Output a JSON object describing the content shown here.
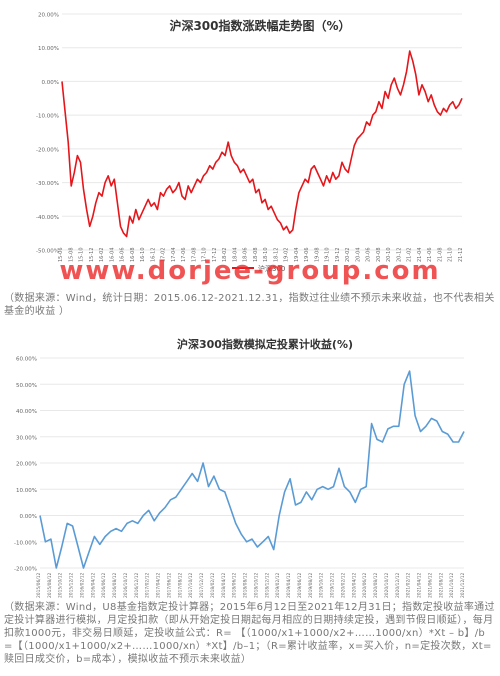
{
  "chart_data": [
    {
      "type": "line",
      "title": "沪深300指数涨跌幅走势图（%）",
      "legend": [
        "沪深300"
      ],
      "legend_position": "bottom",
      "ylim": [
        -50,
        20
      ],
      "yticks": [
        "20.00%",
        "10.00%",
        "0.00%",
        "-10.00%",
        "-20.00%",
        "-30.00%",
        "-40.00%",
        "-50.00%"
      ],
      "ytick_values": [
        20,
        10,
        0,
        -10,
        -20,
        -30,
        -40,
        -50
      ],
      "xticks": [
        "15-06",
        "15-08",
        "15-10",
        "15-12",
        "16-02",
        "16-04",
        "16-06",
        "16-08",
        "16-10",
        "16-12",
        "17-02",
        "17-04",
        "17-06",
        "17-08",
        "17-10",
        "17-12",
        "18-02",
        "18-04",
        "18-06",
        "18-08",
        "18-10",
        "18-12",
        "19-02",
        "19-04",
        "19-06",
        "19-08",
        "19-10",
        "19-12",
        "20-02",
        "20-04",
        "20-06",
        "20-08",
        "20-10",
        "20-12",
        "21-02",
        "21-04",
        "21-06",
        "21-08",
        "21-10",
        "21-12"
      ],
      "color": "#e5161b",
      "grid": "horizontal",
      "series": [
        {
          "name": "沪深300",
          "values": [
            0,
            -9,
            -18,
            -31,
            -27,
            -22,
            -24,
            -32,
            -38,
            -43,
            -40,
            -36,
            -33,
            -34,
            -30,
            -28,
            -31,
            -29,
            -36,
            -43,
            -45,
            -46,
            -40,
            -42,
            -38,
            -41,
            -39,
            -37,
            -35,
            -37,
            -36,
            -38,
            -33,
            -34,
            -32,
            -31,
            -33,
            -32,
            -30,
            -34,
            -35,
            -31,
            -33,
            -31,
            -29,
            -30,
            -28,
            -27,
            -25,
            -26,
            -24,
            -23,
            -21,
            -22,
            -18,
            -22,
            -24,
            -25,
            -27,
            -26,
            -28,
            -30,
            -29,
            -33,
            -32,
            -36,
            -35,
            -38,
            -37,
            -39,
            -41,
            -42,
            -44,
            -43,
            -45,
            -44,
            -38,
            -33,
            -31,
            -29,
            -30,
            -26,
            -25,
            -27,
            -29,
            -31,
            -28,
            -30,
            -27,
            -29,
            -28,
            -24,
            -26,
            -27,
            -23,
            -19,
            -17,
            -16,
            -15,
            -12,
            -13,
            -10,
            -9,
            -6,
            -8,
            -3,
            -5,
            -1,
            1,
            -2,
            -4,
            -1,
            3,
            9,
            6,
            2,
            -4,
            -1,
            -3,
            -6,
            -4,
            -7,
            -9,
            -10,
            -8,
            -9,
            -7,
            -6,
            -8,
            -7,
            -5
          ]
        }
      ]
    },
    {
      "type": "line",
      "title": "沪深300指数模拟定投累计收益(%)",
      "ylim": [
        -20,
        60
      ],
      "yticks": [
        "60.00%",
        "50.00%",
        "40.00%",
        "30.00%",
        "20.00%",
        "10.00%",
        "0.00%",
        "-10.00%",
        "-20.00%"
      ],
      "ytick_values": [
        60,
        50,
        40,
        30,
        20,
        10,
        0,
        -10,
        -20
      ],
      "xticks": [
        "2015/06/12",
        "2015/08/12",
        "2015/10/12",
        "2015/12/12",
        "2016/02/12",
        "2016/04/12",
        "2016/06/12",
        "2016/08/12",
        "2016/10/12",
        "2016/12/12",
        "2017/02/12",
        "2017/04/12",
        "2017/06/12",
        "2017/08/12",
        "2017/10/12",
        "2017/12/12",
        "2018/02/12",
        "2018/04/12",
        "2018/06/12",
        "2018/08/12",
        "2018/10/12",
        "2018/12/12",
        "2019/02/12",
        "2019/04/12",
        "2019/06/12",
        "2019/08/12",
        "2019/10/12",
        "2019/12/12",
        "2020/02/12",
        "2020/04/12",
        "2020/06/12",
        "2020/08/12",
        "2020/10/12",
        "2020/12/12",
        "2021/02/12",
        "2021/04/12",
        "2021/06/12",
        "2021/08/12",
        "2021/10/12",
        "2021/12/12"
      ],
      "color": "#5b9bd5",
      "grid": "horizontal",
      "series": [
        {
          "name": "",
          "values": [
            0,
            -10,
            -9,
            -20,
            -12,
            -3,
            -4,
            -12,
            -20,
            -14,
            -8,
            -11,
            -8,
            -6,
            -5,
            -6,
            -3,
            -2,
            -3,
            0,
            2,
            -2,
            1,
            3,
            6,
            7,
            10,
            13,
            16,
            13,
            20,
            11,
            15,
            10,
            9,
            3,
            -3,
            -7,
            -10,
            -9,
            -12,
            -10,
            -8,
            -13,
            0,
            9,
            14,
            4,
            5,
            9,
            6,
            10,
            11,
            10,
            11,
            18,
            11,
            9,
            5,
            10,
            11,
            35,
            29,
            28,
            33,
            34,
            34,
            50,
            55,
            38,
            32,
            34,
            37,
            36,
            32,
            31,
            28,
            28,
            32
          ]
        }
      ]
    }
  ],
  "watermark": "www.dorjee-group.com",
  "captions": {
    "caption1": "（数据来源：Wind，统计日期：2015.06.12-2021.12.31，指数过往业绩不预示未来收益，也不代表相关基金的收益 ）",
    "caption2": "（数据来源：Wind，U8基金指数定投计算器；2015年6月12日至2021年12月31日；指数定投收益率通过定投计算器进行模拟，月定投扣款（即从开始定投日期起每月相应的日期持续定投，遇到节假日顺延），每月扣款1000元，非交易日顺延，定投收益公式：R= 【（1000/x1+1000/x2+……1000/xn）*Xt – b】/b =【（1000/x1+1000/x2+……1000/xn）*Xt】/b–1；（R=累计收益率，x=买入价，n=定投次数，Xt=赎回日成交价，b=成本），模拟收益不预示未来收益）"
  }
}
